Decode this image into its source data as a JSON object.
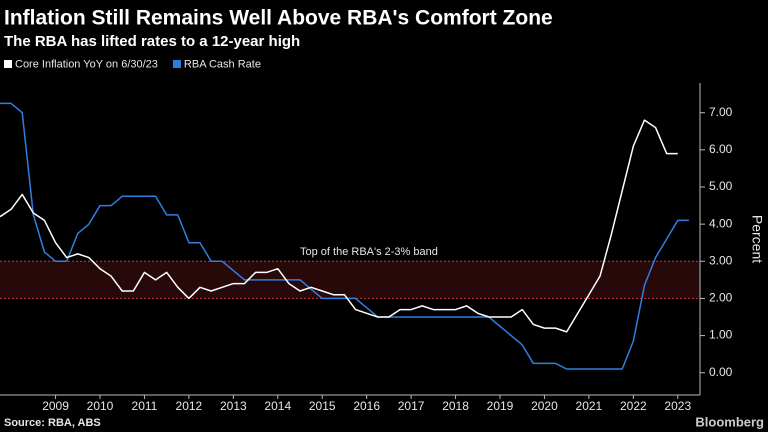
{
  "chart_data": {
    "type": "line",
    "title": "Inflation Still Remains Well Above RBA's Comfort Zone",
    "subtitle": "The RBA has lifted rates to a 12-year high",
    "ylabel": "Percent",
    "source": "Source: RBA, ABS",
    "brand": "Bloomberg",
    "annotation": "Top of the RBA's 2-3% band",
    "band": [
      2,
      3
    ],
    "band_color": "#e0303a",
    "xlim": [
      2008.25,
      2024.0
    ],
    "ylim": [
      -0.6,
      7.8
    ],
    "xticks": [
      {
        "value": 2009.5,
        "label": "2009"
      },
      {
        "value": 2010.5,
        "label": "2010"
      },
      {
        "value": 2011.5,
        "label": "2011"
      },
      {
        "value": 2012.5,
        "label": "2012"
      },
      {
        "value": 2013.5,
        "label": "2013"
      },
      {
        "value": 2014.5,
        "label": "2014"
      },
      {
        "value": 2015.5,
        "label": "2015"
      },
      {
        "value": 2016.5,
        "label": "2016"
      },
      {
        "value": 2017.5,
        "label": "2017"
      },
      {
        "value": 2018.5,
        "label": "2018"
      },
      {
        "value": 2019.5,
        "label": "2019"
      },
      {
        "value": 2020.5,
        "label": "2020"
      },
      {
        "value": 2021.5,
        "label": "2021"
      },
      {
        "value": 2022.5,
        "label": "2022"
      },
      {
        "value": 2023.5,
        "label": "2023"
      }
    ],
    "yticks": [
      {
        "value": 0,
        "label": "0.00"
      },
      {
        "value": 1,
        "label": "1.00"
      },
      {
        "value": 2,
        "label": "2.00"
      },
      {
        "value": 3,
        "label": "3.00"
      },
      {
        "value": 4,
        "label": "4.00"
      },
      {
        "value": 5,
        "label": "5.00"
      },
      {
        "value": 6,
        "label": "6.00"
      },
      {
        "value": 7,
        "label": "7.00"
      }
    ],
    "series": [
      {
        "name": "Core Inflation YoY on 6/30/23",
        "color": "#ffffff",
        "x": [
          2008.25,
          2008.5,
          2008.75,
          2009.0,
          2009.25,
          2009.5,
          2009.75,
          2010.0,
          2010.25,
          2010.5,
          2010.75,
          2011.0,
          2011.25,
          2011.5,
          2011.75,
          2012.0,
          2012.25,
          2012.5,
          2012.75,
          2013.0,
          2013.25,
          2013.5,
          2013.75,
          2014.0,
          2014.25,
          2014.5,
          2014.75,
          2015.0,
          2015.25,
          2015.5,
          2015.75,
          2016.0,
          2016.25,
          2016.5,
          2016.75,
          2017.0,
          2017.25,
          2017.5,
          2017.75,
          2018.0,
          2018.25,
          2018.5,
          2018.75,
          2019.0,
          2019.25,
          2019.5,
          2019.75,
          2020.0,
          2020.25,
          2020.5,
          2020.75,
          2021.0,
          2021.25,
          2021.5,
          2021.75,
          2022.0,
          2022.25,
          2022.5,
          2022.75,
          2023.0,
          2023.25,
          2023.5
        ],
        "values": [
          4.2,
          4.4,
          4.8,
          4.3,
          4.1,
          3.5,
          3.1,
          3.2,
          3.1,
          2.8,
          2.6,
          2.2,
          2.2,
          2.7,
          2.5,
          2.7,
          2.3,
          2.0,
          2.3,
          2.2,
          2.3,
          2.4,
          2.4,
          2.7,
          2.7,
          2.8,
          2.4,
          2.2,
          2.3,
          2.2,
          2.1,
          2.1,
          1.7,
          1.6,
          1.5,
          1.5,
          1.7,
          1.7,
          1.8,
          1.7,
          1.7,
          1.7,
          1.8,
          1.6,
          1.5,
          1.5,
          1.5,
          1.7,
          1.3,
          1.2,
          1.2,
          1.1,
          1.6,
          2.1,
          2.6,
          3.7,
          4.9,
          6.1,
          6.8,
          6.6,
          5.9,
          5.9
        ]
      },
      {
        "name": "RBA Cash Rate",
        "color": "#2f7fe0",
        "x": [
          2008.25,
          2008.5,
          2008.75,
          2009.0,
          2009.25,
          2009.5,
          2009.75,
          2010.0,
          2010.25,
          2010.5,
          2010.75,
          2011.0,
          2011.25,
          2011.5,
          2011.75,
          2012.0,
          2012.25,
          2012.5,
          2012.75,
          2013.0,
          2013.25,
          2013.5,
          2013.75,
          2014.0,
          2014.25,
          2014.5,
          2014.75,
          2015.0,
          2015.25,
          2015.5,
          2015.75,
          2016.0,
          2016.25,
          2016.5,
          2016.75,
          2017.0,
          2017.25,
          2017.5,
          2017.75,
          2018.0,
          2018.25,
          2018.5,
          2018.75,
          2019.0,
          2019.25,
          2019.5,
          2019.75,
          2020.0,
          2020.25,
          2020.5,
          2020.75,
          2021.0,
          2021.25,
          2021.5,
          2021.75,
          2022.0,
          2022.25,
          2022.5,
          2022.75,
          2023.0,
          2023.25,
          2023.5,
          2023.75
        ],
        "values": [
          7.25,
          7.25,
          7.0,
          4.25,
          3.25,
          3.0,
          3.0,
          3.75,
          4.0,
          4.5,
          4.5,
          4.75,
          4.75,
          4.75,
          4.75,
          4.25,
          4.25,
          3.5,
          3.5,
          3.0,
          3.0,
          2.75,
          2.5,
          2.5,
          2.5,
          2.5,
          2.5,
          2.5,
          2.25,
          2.0,
          2.0,
          2.0,
          2.0,
          1.75,
          1.5,
          1.5,
          1.5,
          1.5,
          1.5,
          1.5,
          1.5,
          1.5,
          1.5,
          1.5,
          1.5,
          1.25,
          1.0,
          0.75,
          0.25,
          0.25,
          0.25,
          0.1,
          0.1,
          0.1,
          0.1,
          0.1,
          0.1,
          0.85,
          2.35,
          3.1,
          3.6,
          4.1,
          4.1
        ]
      }
    ]
  }
}
